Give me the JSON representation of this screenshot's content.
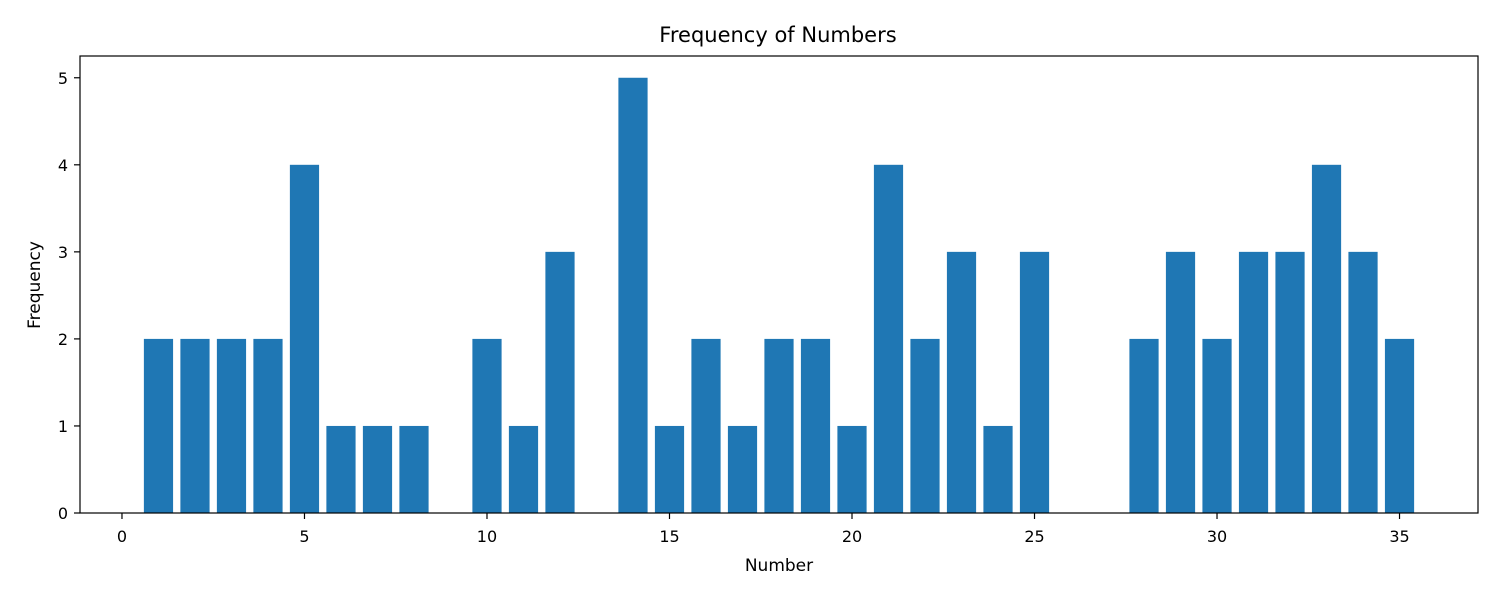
{
  "chart_data": {
    "type": "bar",
    "title": "Frequency of Numbers",
    "xlabel": "Number",
    "ylabel": "Frequency",
    "x": [
      1,
      2,
      3,
      4,
      5,
      6,
      7,
      8,
      10,
      11,
      12,
      14,
      15,
      16,
      17,
      18,
      19,
      20,
      21,
      22,
      23,
      24,
      25,
      28,
      29,
      30,
      31,
      32,
      33,
      34,
      35
    ],
    "values": [
      2,
      2,
      2,
      2,
      4,
      1,
      1,
      1,
      2,
      1,
      3,
      5,
      1,
      2,
      1,
      2,
      2,
      1,
      4,
      2,
      3,
      1,
      3,
      2,
      3,
      2,
      3,
      3,
      4,
      3,
      2
    ],
    "xticks": [
      "0",
      "5",
      "10",
      "15",
      "20",
      "25",
      "30",
      "35"
    ],
    "yticks": [
      "0",
      "1",
      "2",
      "3",
      "4",
      "5"
    ],
    "xlim": [
      -1.15,
      37.15
    ],
    "ylim": [
      0,
      5.25
    ],
    "bar_color": "#1f77b4",
    "grid": false
  }
}
